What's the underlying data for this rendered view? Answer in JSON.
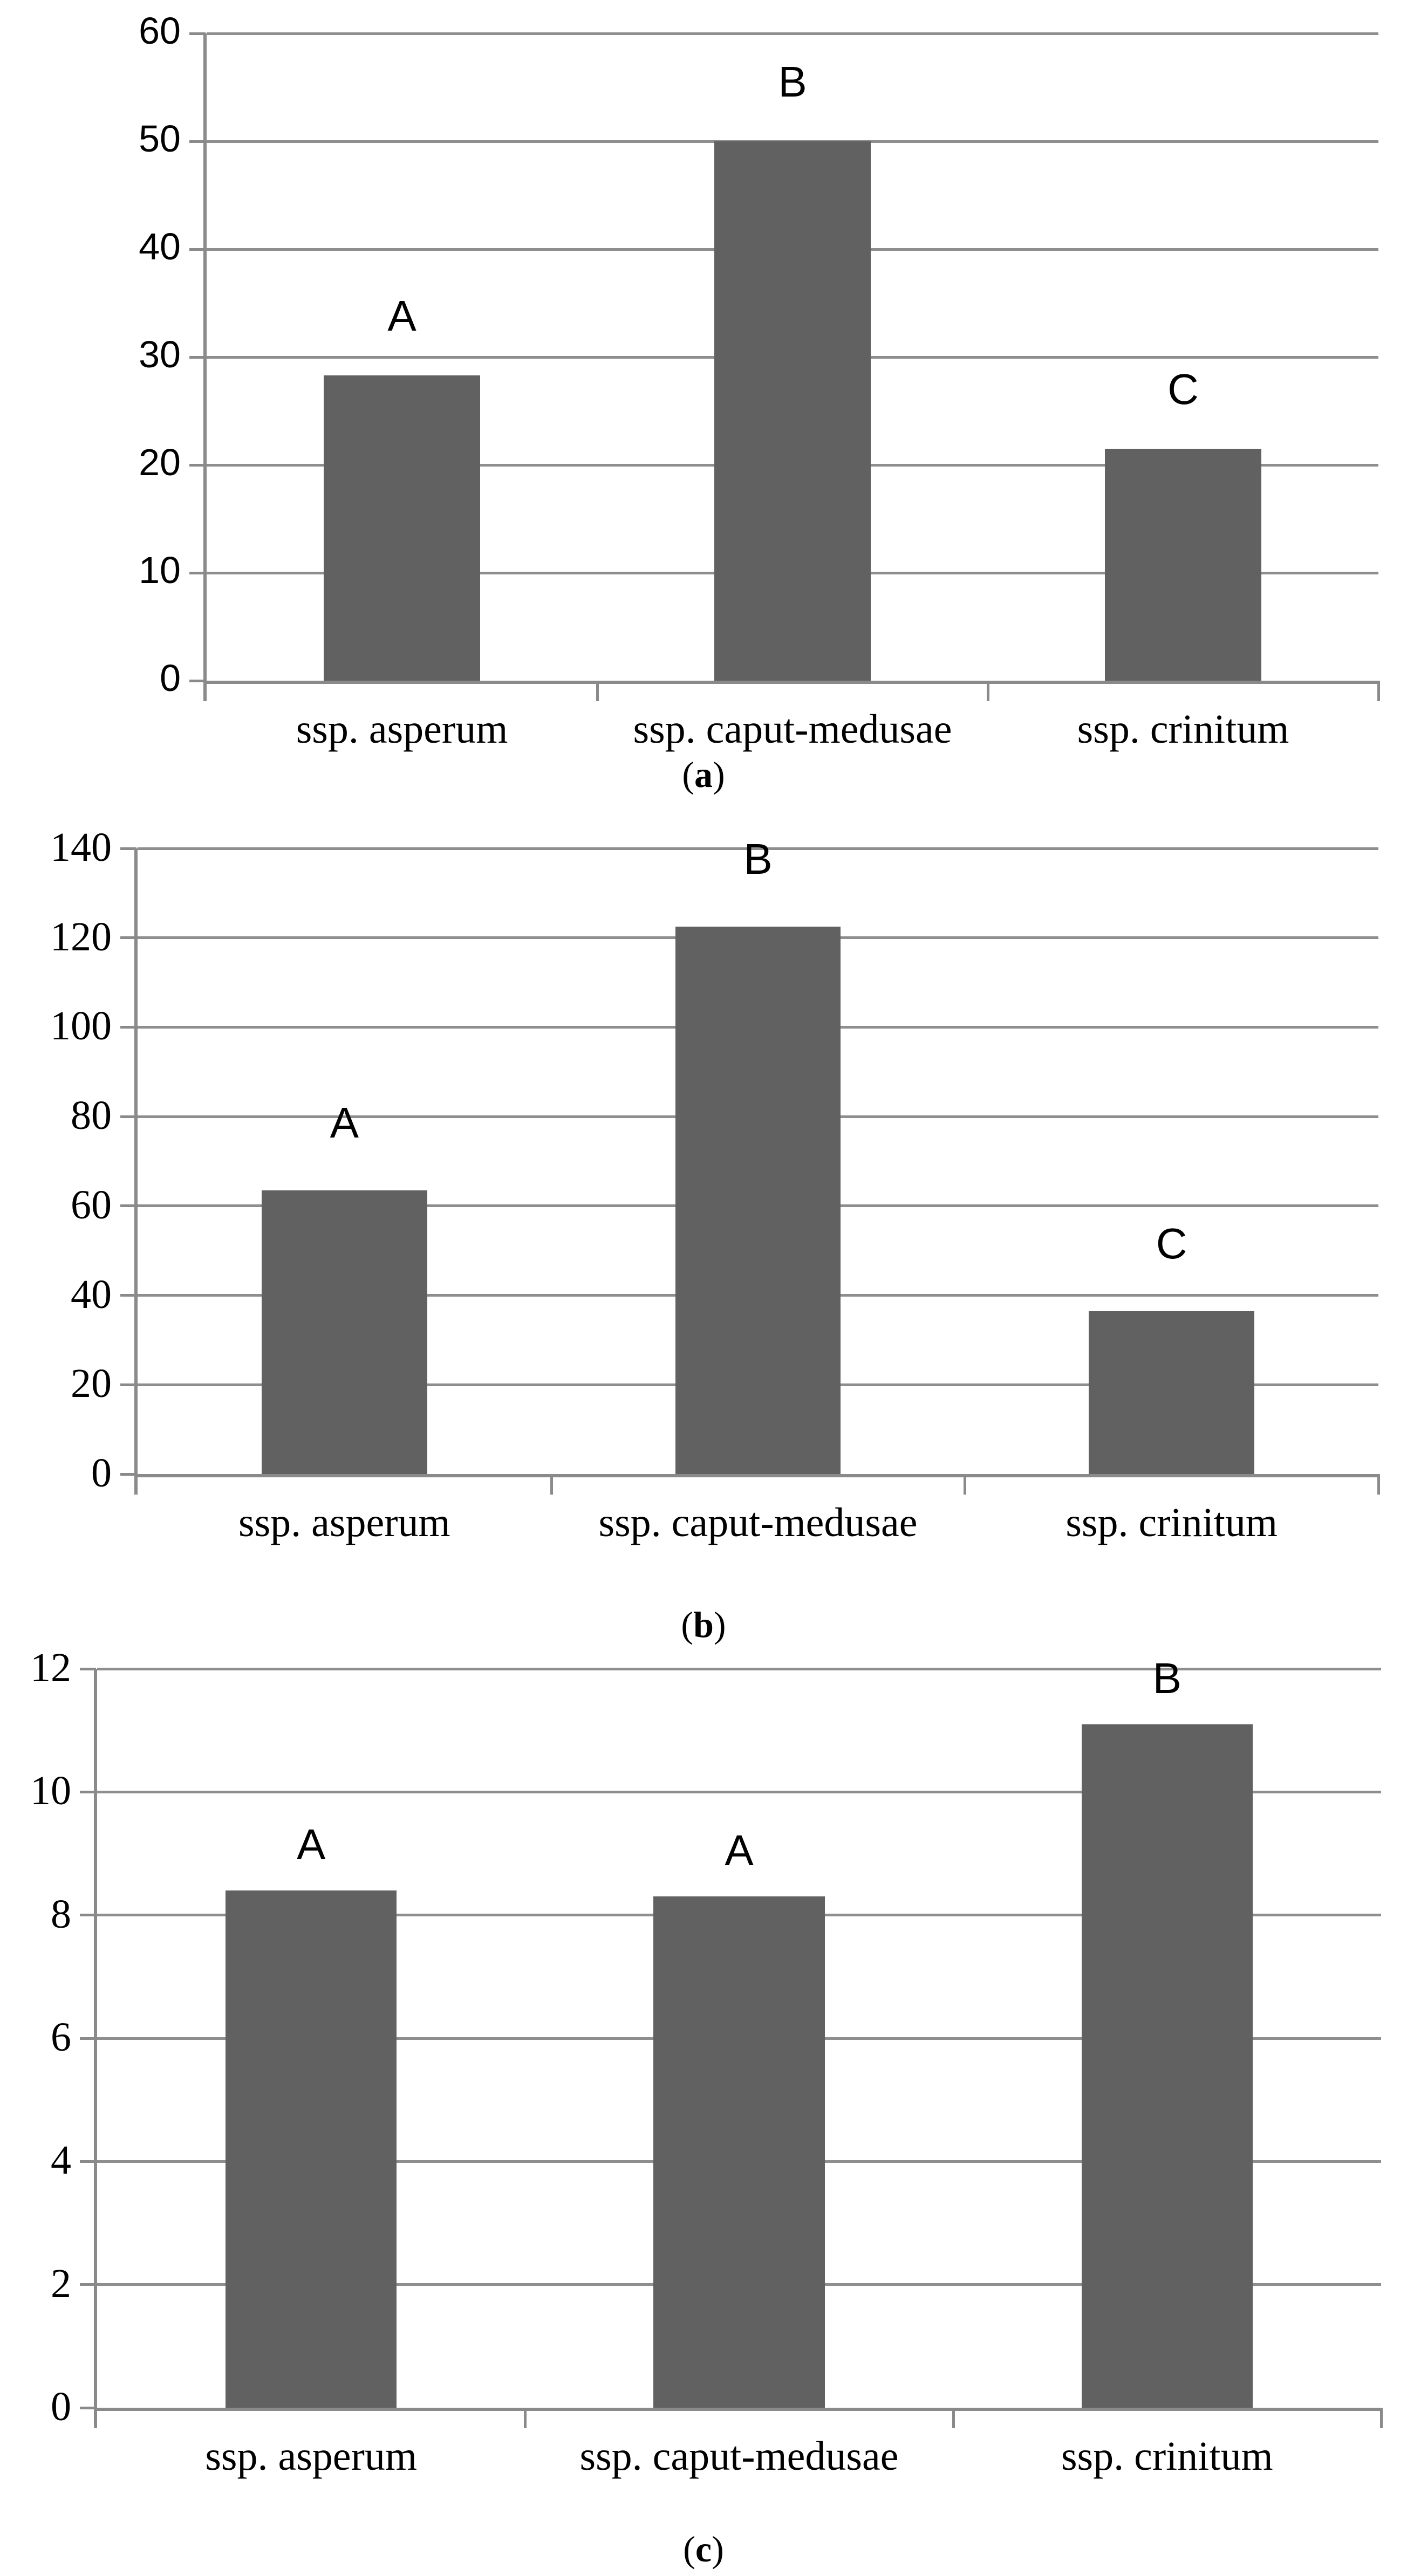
{
  "caption": {
    "open": "(",
    "close": ")"
  },
  "colors": {
    "bar": "#616161",
    "gridline": "#8e8e8e",
    "axis": "#8a8a8a",
    "text": "#000000",
    "background": "#ffffff"
  },
  "chart_data": [
    {
      "type": "bar",
      "panel_letter": "a",
      "panel": "(a)",
      "categories": [
        "ssp. asperum",
        "ssp. caput-medusae",
        "ssp. crinitum"
      ],
      "values": [
        28.3,
        50,
        21.5
      ],
      "bar_labels": [
        "A",
        "B",
        "C"
      ],
      "y_ticks": [
        "0",
        "10",
        "20",
        "30",
        "40",
        "50",
        "60"
      ],
      "ylim": [
        0,
        60
      ],
      "ytick_step": 10,
      "grid": true,
      "legend": "none",
      "xlabel": "",
      "ylabel": "",
      "title": ""
    },
    {
      "type": "bar",
      "panel_letter": "b",
      "panel": "(b)",
      "categories": [
        "ssp. asperum",
        "ssp. caput-medusae",
        "ssp. crinitum"
      ],
      "values": [
        63.5,
        122.5,
        36.5
      ],
      "bar_labels": [
        "A",
        "B",
        "C"
      ],
      "y_ticks": [
        "0",
        "20",
        "40",
        "60",
        "80",
        "100",
        "120",
        "140"
      ],
      "ylim": [
        0,
        140
      ],
      "ytick_step": 20,
      "grid": true,
      "legend": "none",
      "xlabel": "",
      "ylabel": "",
      "title": ""
    },
    {
      "type": "bar",
      "panel_letter": "c",
      "panel": "(c)",
      "categories": [
        "ssp. asperum",
        "ssp. caput-medusae",
        "ssp. crinitum"
      ],
      "values": [
        8.4,
        8.3,
        11.1
      ],
      "bar_labels": [
        "A",
        "A",
        "B"
      ],
      "y_ticks": [
        "0",
        "2",
        "4",
        "6",
        "8",
        "10",
        "12"
      ],
      "ylim": [
        0,
        12
      ],
      "ytick_step": 2,
      "grid": true,
      "legend": "none",
      "xlabel": "",
      "ylabel": "",
      "title": ""
    }
  ]
}
